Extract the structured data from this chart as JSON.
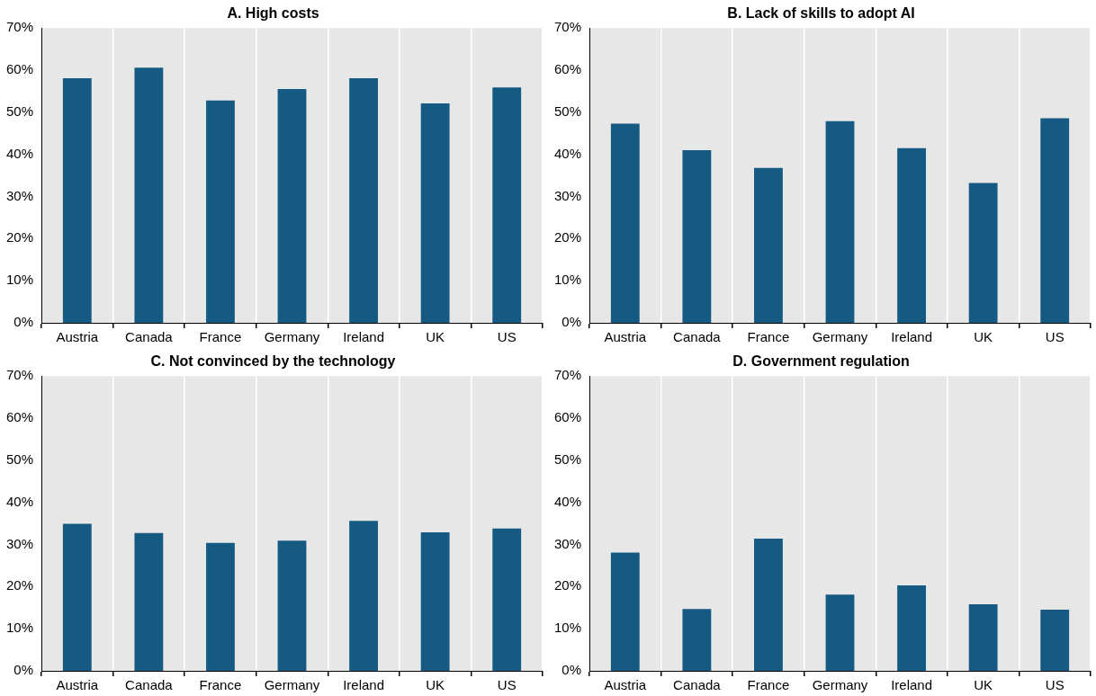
{
  "chart_data": [
    {
      "type": "bar",
      "title": "A. High costs",
      "categories": [
        "Austria",
        "Canada",
        "France",
        "Germany",
        "Ireland",
        "UK",
        "US"
      ],
      "values": [
        58.1,
        60.6,
        52.8,
        55.5,
        58.1,
        52.1,
        55.9
      ],
      "color": "#155a82",
      "ylim": [
        0,
        70
      ],
      "yticks": [
        {
          "value": 0,
          "label": "0%"
        },
        {
          "value": 10,
          "label": "10%"
        },
        {
          "value": 20,
          "label": "20%"
        },
        {
          "value": 30,
          "label": "30%"
        },
        {
          "value": 40,
          "label": "40%"
        },
        {
          "value": 50,
          "label": "50%"
        },
        {
          "value": 60,
          "label": "60%"
        },
        {
          "value": 70,
          "label": "70%"
        }
      ],
      "grid": "x",
      "legend": false
    },
    {
      "type": "bar",
      "title": "B. Lack of skills to adopt AI",
      "categories": [
        "Austria",
        "Canada",
        "France",
        "Germany",
        "Ireland",
        "UK",
        "US"
      ],
      "values": [
        47.3,
        41.0,
        36.8,
        47.9,
        41.5,
        33.2,
        48.6
      ],
      "color": "#155a82",
      "ylim": [
        0,
        70
      ],
      "yticks": [
        {
          "value": 0,
          "label": "0%"
        },
        {
          "value": 10,
          "label": "10%"
        },
        {
          "value": 20,
          "label": "20%"
        },
        {
          "value": 30,
          "label": "30%"
        },
        {
          "value": 40,
          "label": "40%"
        },
        {
          "value": 50,
          "label": "50%"
        },
        {
          "value": 60,
          "label": "60%"
        },
        {
          "value": 70,
          "label": "70%"
        }
      ],
      "grid": "x",
      "legend": false
    },
    {
      "type": "bar",
      "title": "C. Not convinced by the technology",
      "categories": [
        "Austria",
        "Canada",
        "France",
        "Germany",
        "Ireland",
        "UK",
        "US"
      ],
      "values": [
        34.9,
        32.7,
        30.4,
        30.9,
        35.6,
        32.9,
        33.8
      ],
      "color": "#155a82",
      "ylim": [
        0,
        70
      ],
      "yticks": [
        {
          "value": 0,
          "label": "0%"
        },
        {
          "value": 10,
          "label": "10%"
        },
        {
          "value": 20,
          "label": "20%"
        },
        {
          "value": 30,
          "label": "30%"
        },
        {
          "value": 40,
          "label": "40%"
        },
        {
          "value": 50,
          "label": "50%"
        },
        {
          "value": 60,
          "label": "60%"
        },
        {
          "value": 70,
          "label": "70%"
        }
      ],
      "grid": "x",
      "legend": false
    },
    {
      "type": "bar",
      "title": "D. Government regulation",
      "categories": [
        "Austria",
        "Canada",
        "France",
        "Germany",
        "Ireland",
        "UK",
        "US"
      ],
      "values": [
        28.1,
        14.7,
        31.4,
        18.1,
        20.3,
        15.8,
        14.5
      ],
      "color": "#155a82",
      "ylim": [
        0,
        70
      ],
      "yticks": [
        {
          "value": 0,
          "label": "0%"
        },
        {
          "value": 10,
          "label": "10%"
        },
        {
          "value": 20,
          "label": "20%"
        },
        {
          "value": 30,
          "label": "30%"
        },
        {
          "value": 40,
          "label": "40%"
        },
        {
          "value": 50,
          "label": "50%"
        },
        {
          "value": 60,
          "label": "60%"
        },
        {
          "value": 70,
          "label": "70%"
        }
      ],
      "grid": "x",
      "legend": false
    }
  ]
}
